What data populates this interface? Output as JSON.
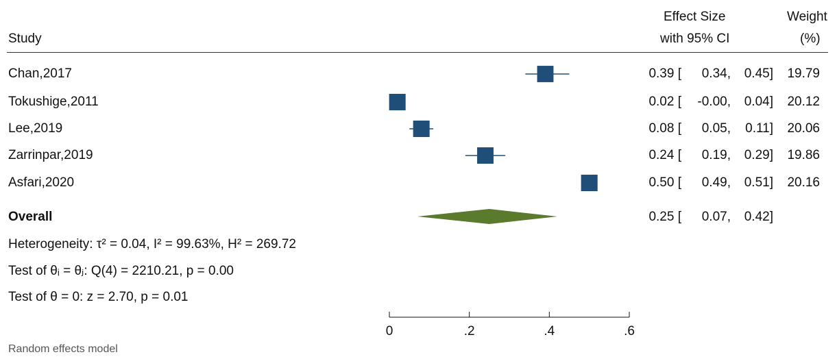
{
  "header": {
    "study_label": "Study",
    "effect_label_line1": "Effect Size",
    "effect_label_line2": "with 95% CI",
    "weight_label_line1": "Weight",
    "weight_label_line2": "(%)"
  },
  "chart_data": {
    "type": "forest",
    "xlim": [
      0,
      0.6
    ],
    "x_ticks": [
      "0",
      ".2",
      ".4",
      ".6"
    ],
    "x_tick_values": [
      0,
      0.2,
      0.4,
      0.6
    ],
    "studies": [
      {
        "name": "Chan,2017",
        "effect": 0.39,
        "lower": 0.34,
        "upper": 0.45,
        "weight": 19.79,
        "effect_text": "0.39 [",
        "lower_text": "0.34,",
        "upper_text": "0.45]",
        "weight_text": "19.79"
      },
      {
        "name": "Tokushige,2011",
        "effect": 0.02,
        "lower": -0.0,
        "upper": 0.04,
        "weight": 20.12,
        "effect_text": "0.02 [",
        "lower_text": "-0.00,",
        "upper_text": "0.04]",
        "weight_text": "20.12"
      },
      {
        "name": "Lee,2019",
        "effect": 0.08,
        "lower": 0.05,
        "upper": 0.11,
        "weight": 20.06,
        "effect_text": "0.08 [",
        "lower_text": "0.05,",
        "upper_text": "0.11]",
        "weight_text": "20.06"
      },
      {
        "name": "Zarrinpar,2019",
        "effect": 0.24,
        "lower": 0.19,
        "upper": 0.29,
        "weight": 19.86,
        "effect_text": "0.24 [",
        "lower_text": "0.19,",
        "upper_text": "0.29]",
        "weight_text": "19.86"
      },
      {
        "name": "Asfari,2020",
        "effect": 0.5,
        "lower": 0.49,
        "upper": 0.51,
        "weight": 20.16,
        "effect_text": "0.50 [",
        "lower_text": "0.49,",
        "upper_text": "0.51]",
        "weight_text": "20.16"
      }
    ],
    "overall": {
      "name": "Overall",
      "effect": 0.25,
      "lower": 0.07,
      "upper": 0.42,
      "effect_text": "0.25 [",
      "lower_text": "0.07,",
      "upper_text": "0.42]"
    },
    "stats": {
      "heterogeneity": "Heterogeneity: τ² = 0.04, I² = 99.63%, H² = 269.72",
      "test_equal": "Test of θᵢ = θⱼ: Q(4) = 2210.21, p = 0.00",
      "test_zero": "Test of θ = 0: z = 2.70, p = 0.01"
    },
    "colors": {
      "marker": "#1f4e79",
      "diamond": "#5a7a2e",
      "ci_line": "#1f4e79"
    },
    "footnote": "Random effects model"
  }
}
